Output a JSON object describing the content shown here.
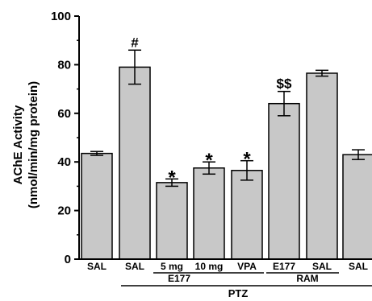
{
  "chart_data": {
    "type": "bar",
    "ylabel_line1": "AChE Activity",
    "ylabel_line2": "(nmol/min/mg protein)",
    "ylim": [
      0,
      100
    ],
    "yticks": [
      "0",
      "20",
      "40",
      "60",
      "80",
      "100"
    ],
    "categories": [
      "SAL",
      "SAL",
      "5 mg",
      "10 mg",
      "VPA",
      "E177",
      "SAL",
      "SAL"
    ],
    "values": [
      43.5,
      79,
      31.5,
      37.5,
      36.5,
      64,
      76.5,
      43
    ],
    "errors": [
      0.8,
      7,
      1.5,
      2.5,
      4,
      5,
      1.2,
      2
    ],
    "annotations": [
      "",
      "#",
      "*",
      "*",
      "*",
      "$$",
      "",
      ""
    ],
    "group_labels": {
      "e177": "E177",
      "ram": "RAM",
      "ptz": "PTZ"
    },
    "bar_color": "#c8c8c8",
    "legend": "none",
    "grid": false
  }
}
